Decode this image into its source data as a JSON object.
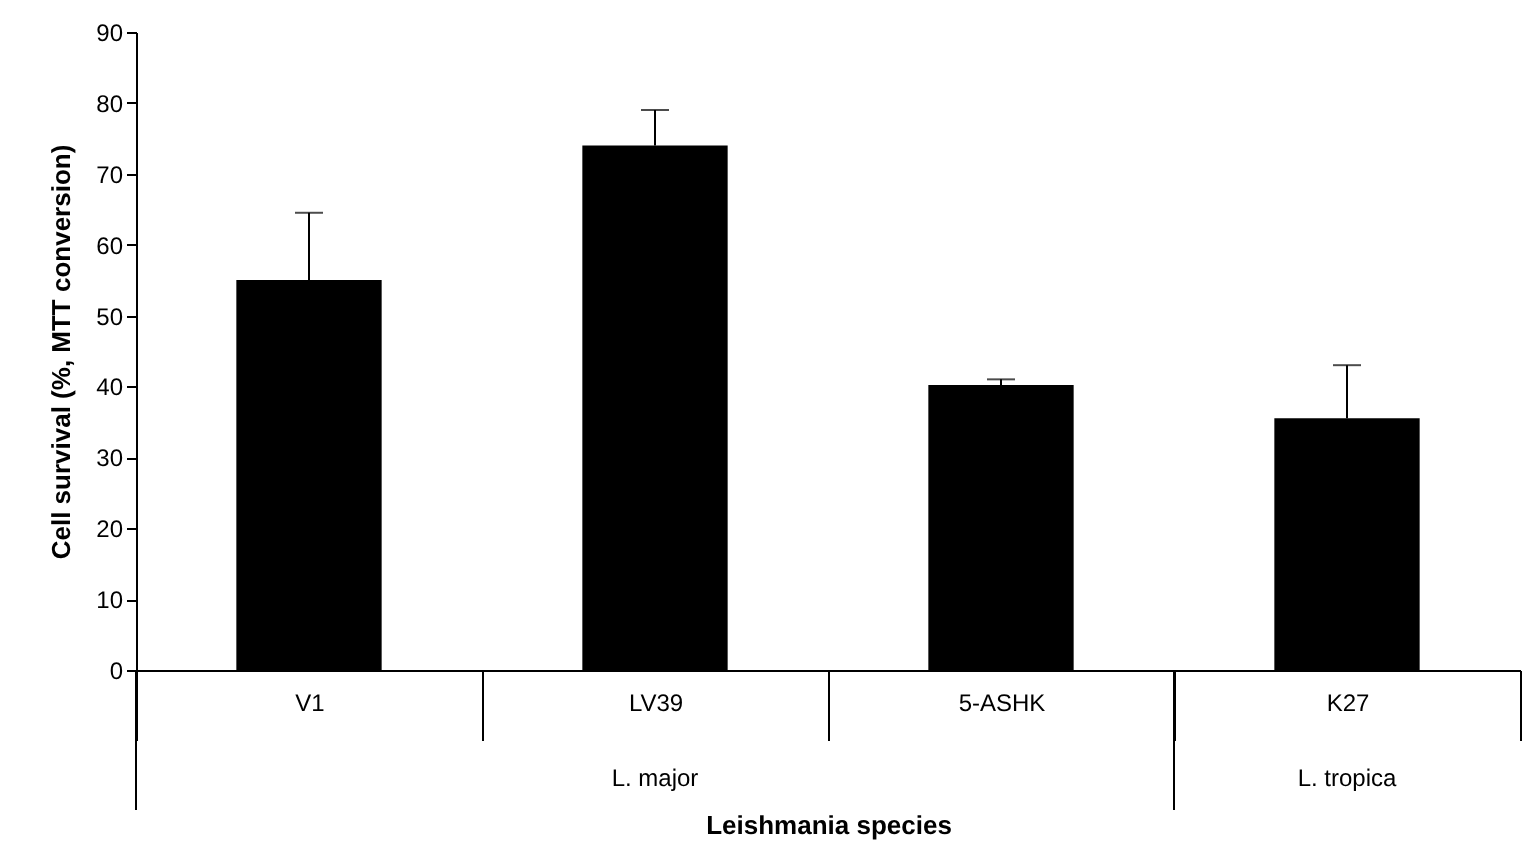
{
  "chart_data": {
    "type": "bar",
    "categories": [
      "V1",
      "LV39",
      "5-ASHK",
      "K27"
    ],
    "values": [
      55,
      74,
      40.2,
      35.5
    ],
    "color": "#000000",
    "errors": [
      [
        55,
        64.5
      ],
      [
        74,
        79
      ],
      [
        40.2,
        41
      ],
      [
        35.5,
        43
      ]
    ],
    "ylim": [
      0,
      90
    ],
    "yticks": [
      0,
      10,
      20,
      30,
      40,
      50,
      60,
      70,
      80,
      90
    ],
    "xlabel": "Leishmania species",
    "ylabel": "Cell survival (%, MTT conversion)",
    "annotations": [
      "L. major",
      "L. tropica"
    ],
    "grid": false
  }
}
